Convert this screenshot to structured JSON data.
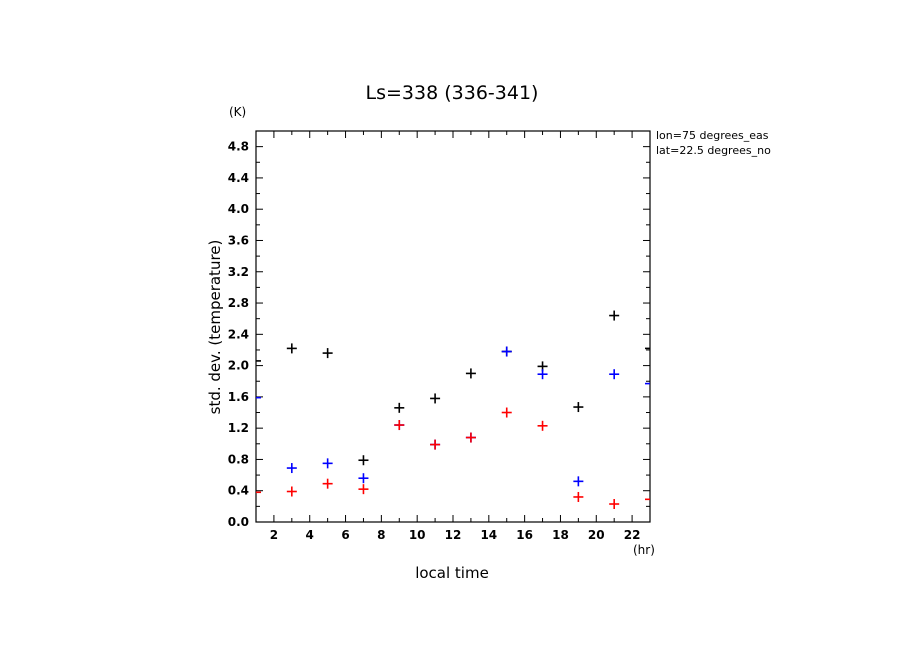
{
  "chart_data": {
    "type": "scatter",
    "title": "Ls=338 (336-341)",
    "xlabel": "local time",
    "ylabel": "std. dev. (temperature)",
    "x_unit": "(hr)",
    "y_unit": "(K)",
    "xlim": [
      1,
      23
    ],
    "ylim": [
      0.0,
      5.0
    ],
    "x_ticks": [
      2,
      4,
      6,
      8,
      10,
      12,
      14,
      16,
      18,
      20,
      22
    ],
    "y_ticks": [
      0.0,
      0.4,
      0.8,
      1.2,
      1.6,
      2.0,
      2.4,
      2.8,
      3.2,
      3.6,
      4.0,
      4.4,
      4.8
    ],
    "x_tick_labels": [
      "2",
      "4",
      "6",
      "8",
      "10",
      "12",
      "14",
      "16",
      "18",
      "20",
      "22"
    ],
    "y_tick_labels": [
      "0.0",
      "0.4",
      "0.8",
      "1.2",
      "1.6",
      "2.0",
      "2.4",
      "2.8",
      "3.2",
      "3.6",
      "4.0",
      "4.4",
      "4.8"
    ],
    "annotations": [
      "lon=75 degrees_eas",
      "lat=22.5 degrees_no"
    ],
    "grid": false,
    "marker": "plus",
    "series": [
      {
        "color": "#000000",
        "x": [
          1,
          3,
          5,
          7,
          9,
          11,
          13,
          15,
          17,
          19,
          21,
          23
        ],
        "y": [
          2.06,
          2.22,
          2.16,
          0.79,
          1.46,
          1.58,
          1.9,
          2.18,
          1.99,
          1.47,
          2.64,
          2.22
        ]
      },
      {
        "color": "#0000ff",
        "x": [
          1,
          3,
          5,
          7,
          9,
          11,
          13,
          15,
          17,
          19,
          21,
          23
        ],
        "y": [
          1.59,
          0.69,
          0.75,
          0.56,
          1.24,
          0.99,
          1.08,
          2.18,
          1.89,
          0.52,
          1.89,
          1.77
        ]
      },
      {
        "color": "#ff0000",
        "x": [
          1,
          3,
          5,
          7,
          9,
          11,
          13,
          15,
          17,
          19,
          21,
          23
        ],
        "y": [
          0.38,
          0.39,
          0.49,
          0.42,
          1.24,
          0.99,
          1.08,
          1.4,
          1.23,
          0.32,
          0.23,
          0.29
        ]
      }
    ]
  }
}
